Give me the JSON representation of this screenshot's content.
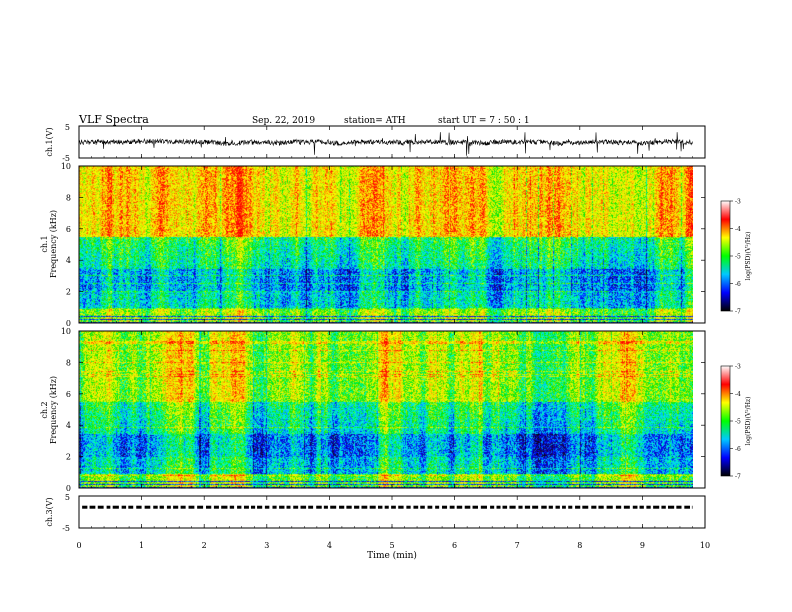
{
  "header": {
    "title": "VLF  Spectra",
    "date": "Sep. 22, 2019",
    "station": "station= ATH",
    "start_ut": "start  UT  =    7  : 50 : 1"
  },
  "chart_data": [
    {
      "type": "line",
      "panel": "ch1-waveform",
      "ylabel": "ch.1(V)",
      "ylim": [
        -5,
        5
      ],
      "yticks": [
        "5",
        "-5"
      ],
      "x_extent_min": [
        0,
        9.8
      ],
      "approx_baseline": 0,
      "approx_noise_amplitude": 1.5
    },
    {
      "type": "heatmap",
      "panel": "ch1-spectrogram",
      "ylabel": "ch.1\nFrequency  (kHz)",
      "ylim": [
        0,
        10
      ],
      "yticks": [
        "0",
        "2",
        "4",
        "6",
        "8",
        "10"
      ],
      "x_extent_min": [
        0,
        9.8
      ],
      "colorbar": {
        "label": "log(PSD)(V²/Hz)",
        "range": [
          -7,
          -3
        ],
        "ticks": [
          "-3",
          "-4",
          "-5",
          "-6",
          "-7"
        ]
      }
    },
    {
      "type": "heatmap",
      "panel": "ch2-spectrogram",
      "ylabel": "ch.2\nFrequency  (kHz)",
      "ylim": [
        0,
        10
      ],
      "yticks": [
        "0",
        "2",
        "4",
        "6",
        "8",
        "10"
      ],
      "x_extent_min": [
        0,
        9.8
      ],
      "colorbar": {
        "label": "log(PSD)(V²/Hz)",
        "range": [
          -7,
          -3
        ],
        "ticks": [
          "-3",
          "-4",
          "-5",
          "-6",
          "-7"
        ]
      }
    },
    {
      "type": "line",
      "panel": "ch3-waveform",
      "ylabel": "ch.3(V)",
      "ylim": [
        -5,
        5
      ],
      "yticks": [
        "5",
        "-5"
      ],
      "x_extent_min": [
        0,
        9.8
      ],
      "approx_level": 1.5
    }
  ],
  "xaxis": {
    "label": "Time  (min)",
    "range": [
      0,
      10
    ],
    "ticks": [
      "0",
      "1",
      "2",
      "3",
      "4",
      "5",
      "6",
      "7",
      "8",
      "9",
      "10"
    ]
  },
  "colormap": [
    "#000000",
    "#1a0a5a",
    "#0000ff",
    "#00b4ff",
    "#00ffc8",
    "#00e600",
    "#c8f000",
    "#ffff00",
    "#ff8000",
    "#ff0000",
    "#ffffff"
  ]
}
